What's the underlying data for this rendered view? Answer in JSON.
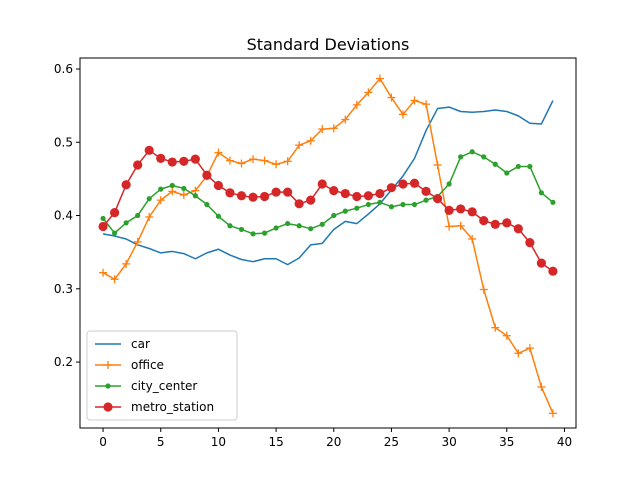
{
  "chart_data": {
    "type": "line",
    "title": "Standard Deviations",
    "xlabel": "",
    "ylabel": "",
    "xlim": [
      -2,
      41
    ],
    "ylim": [
      0.11,
      0.615
    ],
    "xticks": [
      "0",
      "5",
      "10",
      "15",
      "20",
      "25",
      "30",
      "35",
      "40"
    ],
    "yticks": [
      "0.2",
      "0.3",
      "0.4",
      "0.5",
      "0.6"
    ],
    "grid": false,
    "legend_position": "lower-left",
    "x": [
      0,
      1,
      2,
      3,
      4,
      5,
      6,
      7,
      8,
      9,
      10,
      11,
      12,
      13,
      14,
      15,
      16,
      17,
      18,
      19,
      20,
      21,
      22,
      23,
      24,
      25,
      26,
      27,
      28,
      29,
      30,
      31,
      32,
      33,
      34,
      35,
      36,
      37,
      38,
      39
    ],
    "series": [
      {
        "name": "car",
        "color": "#1f77b4",
        "marker": "none",
        "values": [
          0.375,
          0.372,
          0.368,
          0.36,
          0.355,
          0.349,
          0.351,
          0.348,
          0.341,
          0.349,
          0.354,
          0.346,
          0.34,
          0.337,
          0.341,
          0.341,
          0.333,
          0.342,
          0.36,
          0.362,
          0.381,
          0.392,
          0.389,
          0.402,
          0.416,
          0.435,
          0.454,
          0.478,
          0.516,
          0.546,
          0.548,
          0.542,
          0.541,
          0.542,
          0.544,
          0.542,
          0.536,
          0.526,
          0.525,
          0.557
        ]
      },
      {
        "name": "office",
        "color": "#ff7f0e",
        "marker": "plus",
        "values": [
          0.322,
          0.313,
          0.334,
          0.364,
          0.398,
          0.421,
          0.433,
          0.428,
          0.434,
          0.454,
          0.486,
          0.475,
          0.471,
          0.477,
          0.475,
          0.47,
          0.474,
          0.496,
          0.502,
          0.518,
          0.519,
          0.531,
          0.551,
          0.568,
          0.587,
          0.561,
          0.538,
          0.557,
          0.552,
          0.469,
          0.385,
          0.386,
          0.368,
          0.299,
          0.247,
          0.236,
          0.212,
          0.219,
          0.166,
          0.13
        ]
      },
      {
        "name": "city_center",
        "color": "#2ca02c",
        "marker": "dot",
        "values": [
          0.396,
          0.376,
          0.39,
          0.4,
          0.423,
          0.436,
          0.441,
          0.437,
          0.427,
          0.415,
          0.399,
          0.386,
          0.381,
          0.375,
          0.376,
          0.383,
          0.389,
          0.386,
          0.382,
          0.388,
          0.4,
          0.406,
          0.41,
          0.415,
          0.418,
          0.412,
          0.415,
          0.415,
          0.421,
          0.426,
          0.443,
          0.48,
          0.487,
          0.48,
          0.47,
          0.458,
          0.467,
          0.467,
          0.431,
          0.418
        ]
      },
      {
        "name": "metro_station",
        "color": "#d62728",
        "marker": "circle",
        "values": [
          0.385,
          0.404,
          0.442,
          0.469,
          0.489,
          0.478,
          0.473,
          0.474,
          0.477,
          0.455,
          0.441,
          0.431,
          0.427,
          0.425,
          0.426,
          0.432,
          0.432,
          0.416,
          0.421,
          0.443,
          0.434,
          0.43,
          0.426,
          0.427,
          0.43,
          0.438,
          0.443,
          0.444,
          0.433,
          0.423,
          0.407,
          0.409,
          0.405,
          0.393,
          0.388,
          0.39,
          0.382,
          0.363,
          0.335,
          0.324
        ]
      }
    ]
  }
}
